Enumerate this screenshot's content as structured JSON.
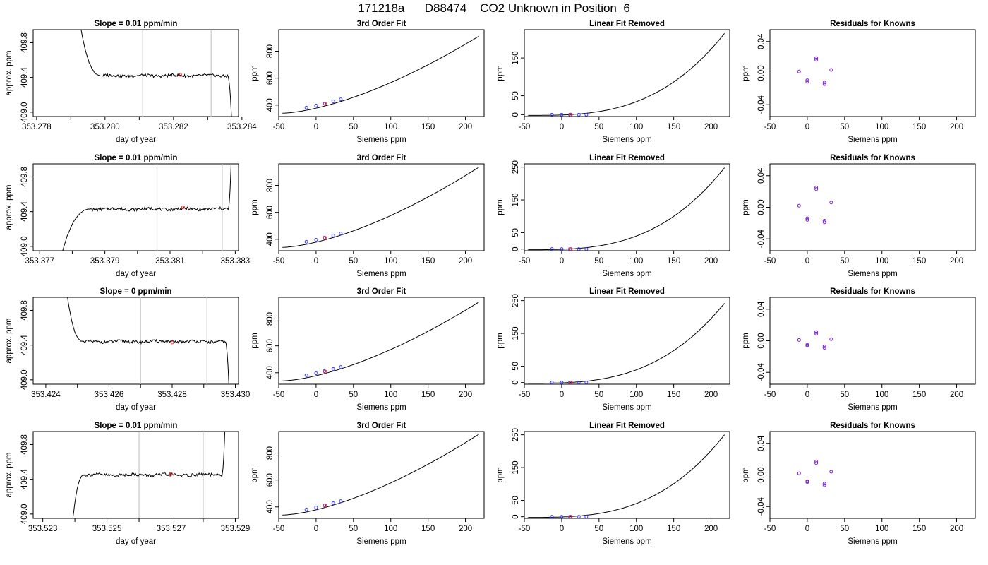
{
  "title": "171218a      D88474    CO2 Unknown in Position  6",
  "colors": {
    "axis": "#000000",
    "vline": "#c8c8c8",
    "known_point": "#3a3aff",
    "unknown_point": "#ff2a2a",
    "residual_point": "#7a1fd6"
  },
  "chart_data": [
    {
      "type": "line",
      "panel": "timeseries",
      "row": 1,
      "title": "Slope =  0.01  ppm/min",
      "xlabel": "day of year",
      "ylabel": "approx. ppm",
      "xlim": [
        353.2779,
        353.2839
      ],
      "ylim": [
        408.95,
        409.95
      ],
      "xticks": [
        "353.278",
        "353.280",
        "353.282",
        "353.284"
      ],
      "xtick_values": [
        353.278,
        353.28,
        353.282,
        353.284
      ],
      "minor_xticks": [
        353.279,
        353.281,
        353.283
      ],
      "yticks": [
        "409.0",
        "409.4",
        "409.8"
      ],
      "ytick_values": [
        409.0,
        409.4,
        409.8
      ],
      "start_value": 410.2,
      "level": 409.42,
      "end_value": 408.9,
      "rise_start_x": 353.2792,
      "settle_x": 353.2799,
      "end_x": 353.2837,
      "vlines": [
        353.2811,
        353.2831
      ],
      "unknown_point": {
        "x": 353.2822,
        "y": 409.43
      }
    },
    {
      "type": "scatter+line",
      "panel": "third-order-fit",
      "row": 1,
      "title": "3rd Order Fit",
      "xlabel": "Siemens ppm",
      "ylabel": "ppm",
      "xlim": [
        -50,
        225
      ],
      "ylim": [
        315,
        960
      ],
      "xticks": [
        "-50",
        "0",
        "50",
        "100",
        "150",
        "200"
      ],
      "xtick_values": [
        -50,
        0,
        50,
        100,
        150,
        200
      ],
      "yticks": [
        "400",
        "600",
        "800"
      ],
      "ytick_values": [
        400,
        600,
        800
      ],
      "curve": {
        "x_range": [
          -45,
          218
        ],
        "y_start": 340,
        "y_end": 912
      },
      "known_points": {
        "x": [
          -13,
          0,
          11,
          23,
          33
        ],
        "y": [
          381,
          396,
          412,
          428,
          443
        ]
      },
      "unknown_point": {
        "x": 12,
        "y": 409
      }
    },
    {
      "type": "scatter+line",
      "panel": "linear-fit-removed",
      "row": 1,
      "title": "Linear Fit Removed",
      "xlabel": "Siemens ppm",
      "ylabel": "ppm",
      "xlim": [
        -50,
        225
      ],
      "ylim": [
        -5,
        225
      ],
      "xticks": [
        "-50",
        "0",
        "50",
        "100",
        "150",
        "200"
      ],
      "xtick_values": [
        -50,
        0,
        50,
        100,
        150,
        200
      ],
      "yticks": [
        "0",
        "50",
        "150"
      ],
      "ytick_values": [
        0,
        50,
        150
      ],
      "curve": {
        "x_range": [
          -45,
          218
        ],
        "y_start": -2,
        "y_end": 215
      },
      "known_points": {
        "x": [
          -13,
          0,
          11,
          23,
          33
        ],
        "y": [
          0,
          0,
          0,
          0,
          0
        ]
      },
      "unknown_point": {
        "x": 12,
        "y": 0
      }
    },
    {
      "type": "scatter",
      "panel": "residuals",
      "row": 1,
      "title": "Residuals for Knowns",
      "xlabel": "Siemens ppm",
      "ylabel": "ppm",
      "xlim": [
        -50,
        225
      ],
      "ylim": [
        -0.055,
        0.055
      ],
      "xticks": [
        "-50",
        "0",
        "50",
        "100",
        "150",
        "200"
      ],
      "xtick_values": [
        -50,
        0,
        50,
        100,
        150,
        200
      ],
      "yticks": [
        "-0.04",
        "0.00",
        "0.04"
      ],
      "ytick_values": [
        -0.04,
        0,
        0.04
      ],
      "points": {
        "x": [
          -11,
          0,
          0,
          12,
          12,
          23,
          23,
          32
        ],
        "y": [
          0.002,
          -0.009,
          -0.011,
          0.017,
          0.019,
          -0.012,
          -0.014,
          0.004
        ]
      }
    },
    {
      "type": "line",
      "panel": "timeseries",
      "row": 2,
      "title": "Slope =  0.01  ppm/min",
      "xlabel": "day of year",
      "ylabel": "approx. ppm",
      "xlim": [
        353.3768,
        353.3831
      ],
      "ylim": [
        408.95,
        409.95
      ],
      "xticks": [
        "353.377",
        "353.379",
        "353.381",
        "353.383"
      ],
      "xtick_values": [
        353.377,
        353.379,
        353.381,
        353.383
      ],
      "minor_xticks": [
        353.378,
        353.38,
        353.382
      ],
      "yticks": [
        "409.0",
        "409.4",
        "409.8"
      ],
      "ytick_values": [
        409.0,
        409.4,
        409.8
      ],
      "start_value": 408.8,
      "level": 409.43,
      "end_value": 410.3,
      "rise_start_x": 353.3776,
      "settle_x": 353.3786,
      "end_x": 353.3829,
      "vlines": [
        353.3806,
        353.3826
      ],
      "unknown_point": {
        "x": 353.3814,
        "y": 409.45
      }
    },
    {
      "type": "scatter+line",
      "panel": "third-order-fit",
      "row": 2,
      "title": "3rd Order Fit",
      "xlabel": "Siemens ppm",
      "ylabel": "ppm",
      "xlim": [
        -50,
        225
      ],
      "ylim": [
        315,
        960
      ],
      "xticks": [
        "-50",
        "0",
        "50",
        "100",
        "150",
        "200"
      ],
      "xtick_values": [
        -50,
        0,
        50,
        100,
        150,
        200
      ],
      "yticks": [
        "400",
        "600",
        "800"
      ],
      "ytick_values": [
        400,
        600,
        800
      ],
      "curve": {
        "x_range": [
          -45,
          218
        ],
        "y_start": 340,
        "y_end": 935
      },
      "known_points": {
        "x": [
          -13,
          0,
          11,
          23,
          33
        ],
        "y": [
          381,
          396,
          412,
          428,
          443
        ]
      },
      "unknown_point": {
        "x": 12,
        "y": 410
      }
    },
    {
      "type": "scatter+line",
      "panel": "linear-fit-removed",
      "row": 2,
      "title": "Linear Fit Removed",
      "xlabel": "Siemens ppm",
      "ylabel": "ppm",
      "xlim": [
        -50,
        225
      ],
      "ylim": [
        -5,
        260
      ],
      "xticks": [
        "-50",
        "0",
        "50",
        "100",
        "150",
        "200"
      ],
      "xtick_values": [
        -50,
        0,
        50,
        100,
        150,
        200
      ],
      "yticks": [
        "0",
        "50",
        "150",
        "250"
      ],
      "ytick_values": [
        0,
        50,
        150,
        250
      ],
      "curve": {
        "x_range": [
          -45,
          218
        ],
        "y_start": -2,
        "y_end": 248
      },
      "known_points": {
        "x": [
          -13,
          0,
          11,
          23,
          33
        ],
        "y": [
          0,
          0,
          0,
          0,
          0
        ]
      },
      "unknown_point": {
        "x": 12,
        "y": 0
      }
    },
    {
      "type": "scatter",
      "panel": "residuals",
      "row": 2,
      "title": "Residuals for Knowns",
      "xlabel": "Siemens ppm",
      "ylabel": "ppm",
      "xlim": [
        -50,
        225
      ],
      "ylim": [
        -0.055,
        0.055
      ],
      "xticks": [
        "-50",
        "0",
        "50",
        "100",
        "150",
        "200"
      ],
      "xtick_values": [
        -50,
        0,
        50,
        100,
        150,
        200
      ],
      "yticks": [
        "-0.04",
        "0.00",
        "0.04"
      ],
      "ytick_values": [
        -0.04,
        0,
        0.04
      ],
      "points": {
        "x": [
          -11,
          0,
          0,
          12,
          12,
          23,
          23,
          32
        ],
        "y": [
          0.002,
          -0.014,
          -0.016,
          0.023,
          0.025,
          -0.017,
          -0.019,
          0.006
        ]
      }
    },
    {
      "type": "line",
      "panel": "timeseries",
      "row": 3,
      "title": "Slope =  0  ppm/min",
      "xlabel": "day of year",
      "ylabel": "approx. ppm",
      "xlim": [
        353.4236,
        353.4301
      ],
      "ylim": [
        408.95,
        409.95
      ],
      "xticks": [
        "353.424",
        "353.426",
        "353.428",
        "353.430"
      ],
      "xtick_values": [
        353.424,
        353.426,
        353.428,
        353.43
      ],
      "minor_xticks": [
        353.425,
        353.427,
        353.429
      ],
      "yticks": [
        "409.0",
        "409.4",
        "409.8"
      ],
      "ytick_values": [
        409.0,
        409.4,
        409.8
      ],
      "start_value": 410.2,
      "level": 409.44,
      "end_value": 408.9,
      "rise_start_x": 353.4246,
      "settle_x": 353.4252,
      "end_x": 353.4298,
      "vlines": [
        353.427,
        353.4291
      ],
      "unknown_point": {
        "x": 353.428,
        "y": 409.43
      }
    },
    {
      "type": "scatter+line",
      "panel": "third-order-fit",
      "row": 3,
      "title": "3rd Order Fit",
      "xlabel": "Siemens ppm",
      "ylabel": "ppm",
      "xlim": [
        -50,
        225
      ],
      "ylim": [
        315,
        960
      ],
      "xticks": [
        "-50",
        "0",
        "50",
        "100",
        "150",
        "200"
      ],
      "xtick_values": [
        -50,
        0,
        50,
        100,
        150,
        200
      ],
      "yticks": [
        "400",
        "600",
        "800"
      ],
      "ytick_values": [
        400,
        600,
        800
      ],
      "curve": {
        "x_range": [
          -45,
          218
        ],
        "y_start": 340,
        "y_end": 925
      },
      "known_points": {
        "x": [
          -13,
          0,
          11,
          23,
          33
        ],
        "y": [
          381,
          396,
          412,
          428,
          443
        ]
      },
      "unknown_point": {
        "x": 12,
        "y": 409
      }
    },
    {
      "type": "scatter+line",
      "panel": "linear-fit-removed",
      "row": 3,
      "title": "Linear Fit Removed",
      "xlabel": "Siemens ppm",
      "ylabel": "ppm",
      "xlim": [
        -50,
        225
      ],
      "ylim": [
        -5,
        260
      ],
      "xticks": [
        "-50",
        "0",
        "50",
        "100",
        "150",
        "200"
      ],
      "xtick_values": [
        -50,
        0,
        50,
        100,
        150,
        200
      ],
      "yticks": [
        "0",
        "50",
        "150",
        "250"
      ],
      "ytick_values": [
        0,
        50,
        150,
        250
      ],
      "curve": {
        "x_range": [
          -45,
          218
        ],
        "y_start": -2,
        "y_end": 242
      },
      "known_points": {
        "x": [
          -13,
          0,
          11,
          23,
          33
        ],
        "y": [
          0,
          0,
          0,
          0,
          0
        ]
      },
      "unknown_point": {
        "x": 12,
        "y": 0
      }
    },
    {
      "type": "scatter",
      "panel": "residuals",
      "row": 3,
      "title": "Residuals for Knowns",
      "xlabel": "Siemens ppm",
      "ylabel": "ppm",
      "xlim": [
        -50,
        225
      ],
      "ylim": [
        -0.055,
        0.055
      ],
      "xticks": [
        "-50",
        "0",
        "50",
        "100",
        "150",
        "200"
      ],
      "xtick_values": [
        -50,
        0,
        50,
        100,
        150,
        200
      ],
      "yticks": [
        "-0.04",
        "0.00",
        "0.04"
      ],
      "ytick_values": [
        -0.04,
        0,
        0.04
      ],
      "points": {
        "x": [
          -11,
          0,
          0,
          12,
          12,
          23,
          23,
          32
        ],
        "y": [
          0.001,
          -0.005,
          -0.006,
          0.009,
          0.011,
          -0.007,
          -0.009,
          0.002
        ]
      }
    },
    {
      "type": "line",
      "panel": "timeseries",
      "row": 4,
      "title": "Slope =  0.01  ppm/min",
      "xlabel": "day of year",
      "ylabel": "approx. ppm",
      "xlim": [
        353.5227,
        353.5291
      ],
      "ylim": [
        408.95,
        409.95
      ],
      "xticks": [
        "353.523",
        "353.525",
        "353.527",
        "353.529"
      ],
      "xtick_values": [
        353.523,
        353.525,
        353.527,
        353.529
      ],
      "minor_xticks": [
        353.524,
        353.526,
        353.528
      ],
      "yticks": [
        "409.0",
        "409.4",
        "409.8"
      ],
      "ytick_values": [
        409.0,
        409.4,
        409.8
      ],
      "start_value": 408.8,
      "level": 409.45,
      "end_value": 410.3,
      "rise_start_x": 353.5239,
      "settle_x": 353.5243,
      "end_x": 353.5287,
      "vlines": [
        353.526,
        353.528
      ],
      "unknown_point": {
        "x": 353.527,
        "y": 409.46
      }
    },
    {
      "type": "scatter+line",
      "panel": "third-order-fit",
      "row": 4,
      "title": "3rd Order Fit",
      "xlabel": "Siemens ppm",
      "ylabel": "ppm",
      "xlim": [
        -50,
        225
      ],
      "ylim": [
        315,
        960
      ],
      "xticks": [
        "-50",
        "0",
        "50",
        "100",
        "150",
        "200"
      ],
      "xtick_values": [
        -50,
        0,
        50,
        100,
        150,
        200
      ],
      "yticks": [
        "400",
        "600",
        "800"
      ],
      "ytick_values": [
        400,
        600,
        800
      ],
      "curve": {
        "x_range": [
          -45,
          218
        ],
        "y_start": 340,
        "y_end": 940
      },
      "known_points": {
        "x": [
          -13,
          0,
          11,
          23,
          33
        ],
        "y": [
          381,
          396,
          412,
          428,
          443
        ]
      },
      "unknown_point": {
        "x": 12,
        "y": 411
      }
    },
    {
      "type": "scatter+line",
      "panel": "linear-fit-removed",
      "row": 4,
      "title": "Linear Fit Removed",
      "xlabel": "Siemens ppm",
      "ylabel": "ppm",
      "xlim": [
        -50,
        225
      ],
      "ylim": [
        -5,
        260
      ],
      "xticks": [
        "-50",
        "0",
        "50",
        "100",
        "150",
        "200"
      ],
      "xtick_values": [
        -50,
        0,
        50,
        100,
        150,
        200
      ],
      "yticks": [
        "0",
        "50",
        "150",
        "250"
      ],
      "ytick_values": [
        0,
        50,
        150,
        250
      ],
      "curve": {
        "x_range": [
          -45,
          218
        ],
        "y_start": -2,
        "y_end": 250
      },
      "known_points": {
        "x": [
          -13,
          0,
          11,
          23,
          33
        ],
        "y": [
          0,
          0,
          0,
          0,
          0
        ]
      },
      "unknown_point": {
        "x": 12,
        "y": 0
      }
    },
    {
      "type": "scatter",
      "panel": "residuals",
      "row": 4,
      "title": "Residuals for Knowns",
      "xlabel": "Siemens ppm",
      "ylabel": "ppm",
      "xlim": [
        -50,
        225
      ],
      "ylim": [
        -0.055,
        0.055
      ],
      "xticks": [
        "-50",
        "0",
        "50",
        "100",
        "150",
        "200"
      ],
      "xtick_values": [
        -50,
        0,
        50,
        100,
        150,
        200
      ],
      "yticks": [
        "-0.04",
        "0.00",
        "0.04"
      ],
      "ytick_values": [
        -0.04,
        0,
        0.04
      ],
      "points": {
        "x": [
          -11,
          0,
          0,
          12,
          12,
          23,
          23,
          32
        ],
        "y": [
          0.002,
          -0.008,
          -0.009,
          0.015,
          0.017,
          -0.011,
          -0.013,
          0.004
        ]
      }
    }
  ]
}
